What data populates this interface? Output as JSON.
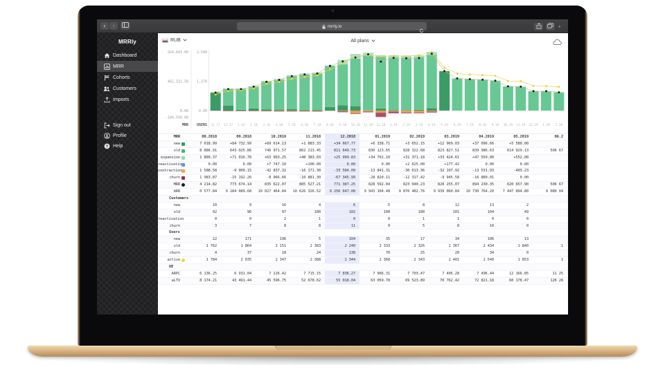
{
  "browser": {
    "back_label": "‹",
    "forward_label": "›",
    "url": "mrrly.io",
    "new_tab_label": "+"
  },
  "sidebar": {
    "brand": "MRRly",
    "items": [
      {
        "label": "Dashboard",
        "icon": "home-icon",
        "selected": false
      },
      {
        "label": "MRR",
        "icon": "chart-icon",
        "selected": true
      },
      {
        "label": "Cohorts",
        "icon": "cohorts-icon",
        "selected": false
      },
      {
        "label": "Customers",
        "icon": "customers-icon",
        "selected": false
      },
      {
        "label": "Imports",
        "icon": "imports-icon",
        "selected": false
      }
    ],
    "footer_items": [
      {
        "label": "Sign out",
        "icon": "signout-icon"
      },
      {
        "label": "Profile",
        "icon": "profile-icon"
      },
      {
        "label": "Help",
        "icon": "help-icon"
      }
    ]
  },
  "toolbar": {
    "currency": "RUB",
    "currency_flag": "russia-flag-icon",
    "plans": "All plans",
    "download_icon": "cloud-icon"
  },
  "chart_data": {
    "type": "bar",
    "title": "",
    "x": [
      "11.17",
      "12.17",
      "1.18",
      "2.18",
      "3.18",
      "4.18",
      "5.18",
      "6.18",
      "7.18",
      "8.18",
      "9.18",
      "10.18",
      "11.18",
      "12.18",
      "1.19",
      "2.19",
      "3.19",
      "4.19",
      "5.19",
      "6.19",
      "7.19",
      "8.19",
      "9.19",
      "10.19",
      "11.19",
      "12.19",
      "1.20",
      "2.20"
    ],
    "series": [
      {
        "name": "new",
        "kind": "bar",
        "color": "#3a9c64",
        "values": [
          285000,
          80000,
          12000,
          35000,
          20000,
          15000,
          25000,
          12000,
          10000,
          57091,
          84733,
          69614,
          1883,
          34668,
          6339,
          3652,
          12969,
          37097,
          5580,
          0,
          0,
          0,
          0,
          0,
          0,
          0,
          0,
          0
        ]
      },
      {
        "name": "old",
        "kind": "bar",
        "color": "#67c893",
        "values": [
          0,
          262000,
          330000,
          342000,
          432000,
          470000,
          517000,
          556000,
          572000,
          648887,
          643026,
          746972,
          862213,
          811650,
          830124,
          828323,
          823828,
          839987,
          614929,
          506670,
          495000,
          487000,
          470000,
          382000,
          376000,
          306000,
          306000,
          288000
        ]
      },
      {
        "name": "expansion",
        "kind": "bar",
        "color": "#a9e4c1",
        "values": [
          0,
          6000,
          6000,
          10000,
          15000,
          14000,
          16000,
          17000,
          18000,
          1809,
          71017,
          63093,
          48383,
          26000,
          34791,
          31371,
          33425,
          47559,
          552,
          0,
          0,
          0,
          0,
          0,
          0,
          0,
          0,
          0
        ]
      },
      {
        "name": "reactivation",
        "kind": "bar",
        "color": "#8ba8f0",
        "values": [
          0,
          0,
          0,
          0,
          0,
          0,
          0,
          0,
          0,
          0,
          0,
          7747,
          100,
          0,
          0,
          2625,
          177,
          0,
          0,
          0,
          0,
          0,
          0,
          0,
          0,
          0,
          0,
          0
        ]
      },
      {
        "name": "contraction",
        "kind": "bar",
        "color": "#ef9a4f",
        "values": [
          0,
          -4000,
          -4000,
          -5000,
          -6000,
          -8000,
          -7000,
          -8000,
          -7000,
          -1589,
          -9909,
          -42837,
          -16171,
          -33584,
          -13841,
          -30613,
          -32198,
          -13532,
          -403,
          0,
          0,
          0,
          0,
          0,
          0,
          0,
          0,
          0
        ]
      },
      {
        "name": "churn",
        "kind": "bar",
        "color": "#b04e6b",
        "values": [
          -2000,
          -6000,
          -6000,
          -5000,
          -6000,
          -7000,
          -8000,
          -7000,
          -9000,
          -1984,
          -15192,
          -8967,
          -10881,
          -67346,
          -28820,
          -12317,
          -9946,
          -16880,
          0,
          0,
          0,
          0,
          0,
          0,
          0,
          0,
          0,
          0
        ]
      },
      {
        "name": "MRR",
        "kind": "line",
        "axis": "mrr",
        "color": "#c9b895",
        "dot_color": "#1b1b1b",
        "values": [
          283000,
          338000,
          338000,
          377000,
          455000,
          484000,
          543000,
          570000,
          584000,
          704215,
          773674,
          835622,
          885527,
          771387,
          828592,
          823040,
          828255,
          894230,
          620658,
          506670,
          495000,
          487000,
          470000,
          382000,
          376000,
          306000,
          306000,
          288000
        ]
      },
      {
        "name": "active users",
        "kind": "line",
        "axis": "users",
        "color": "#f0cf45",
        "dot_color": "#f2d338",
        "values": [
          700,
          850,
          880,
          960,
          1150,
          1230,
          1370,
          1450,
          1520,
          1784,
          2035,
          2347,
          2388,
          2344,
          2368,
          2343,
          2401,
          2540,
          1853,
          1600,
          1560,
          1540,
          1500,
          1280,
          1270,
          1070,
          1060,
          1030
        ]
      }
    ],
    "dark_bars": [
      0,
      18
    ],
    "y_axis_mrr": {
      "caption": "MRR",
      "ticks": [
        "924,643.00",
        "462,321.50",
        "0.00",
        "-100,930.00"
      ],
      "max": 924643,
      "min": -100930
    },
    "y_axis_users": {
      "caption": "USERS",
      "ticks": [
        "2,540",
        "1,270",
        "0.00"
      ],
      "max": 2540
    },
    "grid": false,
    "legend_position": "table-row-chips"
  },
  "table": {
    "header_label": "MRR",
    "columns": [
      "08.2018",
      "09.2018",
      "10.2018",
      "11.2018",
      "12.2018",
      "01.2019",
      "02.2019",
      "03.2019",
      "04.2019",
      "05.2019",
      "06.2"
    ],
    "highlight_column": "12.2018",
    "sections": [
      {
        "name": "",
        "rows": [
          {
            "label": "new",
            "chip": {
              "shape": "square",
              "color": "#2f9e5f"
            },
            "values": [
              "7 018.99",
              "+84 732.99",
              "+69 614.13",
              "+1 883.33",
              "+34 667.77",
              "+6 338.71",
              "+3 652.15",
              "+12 969.03",
              "+37 096.66",
              "+5 580.00",
              ""
            ]
          },
          {
            "label": "old",
            "chip": {
              "shape": "square",
              "color": "#3cb878"
            },
            "values": [
              "8 886.91",
              "643 025.86",
              "746 971.57",
              "862 213.45",
              "811 649.73",
              "830 123.65",
              "828 322.68",
              "823 827.51",
              "839 986.63",
              "614 929.13",
              "506 67"
            ]
          },
          {
            "label": "expansion",
            "chip": {
              "shape": "square",
              "color": "#8edcab"
            },
            "values": [
              "1 809.37",
              "+71 016.70",
              "+63 093.25",
              "+48 383.03",
              "+25 999.83",
              "+34 791.10",
              "+31 371.18",
              "+33 424.61",
              "+47 559.00",
              "+552.00",
              ""
            ]
          },
          {
            "label": "reactivation",
            "chip": {
              "shape": "square",
              "color": "#6c8ef5"
            },
            "values": [
              "0.00",
              "0.00",
              "+7 747.10",
              "+100.00",
              "0.00",
              "0.00",
              "+2 625.00",
              "+177.42",
              "0.00",
              "0.00",
              ""
            ]
          },
          {
            "label": "contraction",
            "chip": {
              "shape": "square",
              "color": "#f6a44c"
            },
            "values": [
              "1 588.58",
              "-9 909.15",
              "-42 837.32",
              "-16 171.30",
              "-33 584.09",
              "-13 841.31",
              "-30 613.36",
              "-32 197.92",
              "-13 531.93",
              "-403.23",
              ""
            ]
          },
          {
            "label": "churn",
            "chip": {
              "shape": "square",
              "color": "#9e2b45"
            },
            "values": [
              "1 983.87",
              "-15 192.26",
              "-8 966.66",
              "-10 881.30",
              "-67 345.99",
              "-28 820.11",
              "-12 317.42",
              "-9 945.58",
              "-16 880.01",
              "0.00",
              ""
            ]
          },
          {
            "label": "MRR",
            "chip": {
              "shape": "circle",
              "color": "#1b1b1b"
            },
            "values": [
              "4 214.82",
              "773 674.14",
              "835 622.07",
              "885 527.21",
              "771 387.25",
              "828 592.04",
              "823 040.23",
              "828 255.07",
              "894 230.35",
              "620 657.90",
              "506 67"
            ]
          },
          {
            "label": "ARR",
            "chip": null,
            "values": [
              "0 577.84",
              "9 284 089.68",
              "10 027 464.84",
              "10 626 326.52",
              "9 256 647.00",
              "9 943 104.48",
              "9 876 482.76",
              "9 939 060.84",
              "10 730 764.20",
              "7 447 894.80",
              "6 080 04"
            ]
          }
        ]
      },
      {
        "name": "Customers",
        "rows": [
          {
            "label": "new",
            "chip": null,
            "values": [
              "10",
              "9",
              "16",
              "4",
              "6",
              "5",
              "8",
              "12",
              "13",
              "2",
              ""
            ]
          },
          {
            "label": "old",
            "chip": null,
            "values": [
              "92",
              "96",
              "97",
              "100",
              "102",
              "100",
              "100",
              "101",
              "104",
              "49",
              ""
            ]
          },
          {
            "label": "reactivation",
            "chip": null,
            "values": [
              "0",
              "0",
              "2",
              "1",
              "0",
              "0",
              "1",
              "1",
              "0",
              "0",
              ""
            ]
          },
          {
            "label": "churn",
            "chip": null,
            "values": [
              "3",
              "7",
              "8",
              "8",
              "11",
              "9",
              "5",
              "8",
              "10",
              "0",
              ""
            ]
          }
        ]
      },
      {
        "name": "Users",
        "rows": [
          {
            "label": "new",
            "chip": null,
            "values": [
              "22",
              "171",
              "196",
              "5",
              "104",
              "35",
              "17",
              "34",
              "106",
              "13",
              ""
            ]
          },
          {
            "label": "old",
            "chip": null,
            "values": [
              "1 762",
              "1 864",
              "2 151",
              "2 383",
              "2 240",
              "2 333",
              "2 326",
              "2 367",
              "2 434",
              "1 840",
              "1"
            ]
          },
          {
            "label": "churn",
            "chip": null,
            "values": [
              "4",
              "37",
              "18",
              "24",
              "138",
              "70",
              "25",
              "20",
              "34",
              "0",
              ""
            ]
          },
          {
            "label": "active",
            "chip": {
              "shape": "circle",
              "color": "#f2d338"
            },
            "values": [
              "1 784",
              "2 035",
              "2 347",
              "2 388",
              "2 344",
              "2 368",
              "2 343",
              "2 401",
              "2 540",
              "1 853",
              "1"
            ]
          }
        ]
      },
      {
        "name": "UE",
        "rows": [
          {
            "label": "ARPC",
            "chip": null,
            "values": [
              "6 136.25",
              "6 931.04",
              "7 226.42",
              "7 715.15",
              "7 836.27",
              "7 966.31",
              "7 703.47",
              "7 405.28",
              "7 496.44",
              "12 166.85",
              "11 25"
            ]
          },
          {
            "label": "aLTV",
            "chip": null,
            "values": [
              "8 174.21",
              "43 491.44",
              "45 596.75",
              "52 678.62",
              "55 018.04",
              "63 059.78",
              "69 523.89",
              "70 762.42",
              "72 821.18",
              "60 178.47",
              "126 28"
            ]
          }
        ]
      }
    ]
  }
}
